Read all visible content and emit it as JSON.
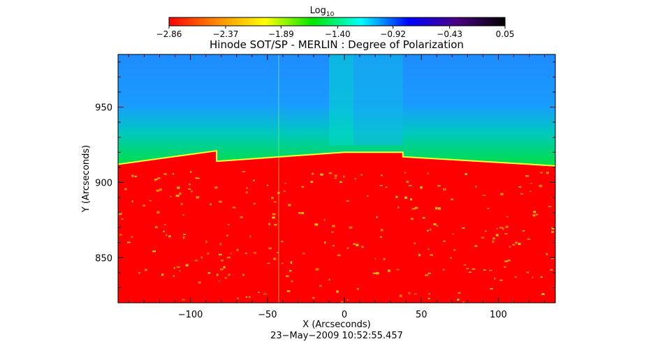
{
  "chart_data": {
    "type": "heatmap",
    "title": "Hinode SOT/SP - MERLIN : Degree of Polarization",
    "xlabel": "X (Arcseconds)",
    "ylabel": "Y (Arcseconds)",
    "xlim": [
      -147,
      137
    ],
    "ylim": [
      820,
      985
    ],
    "x_ticks": [
      -100,
      -50,
      0,
      50,
      100
    ],
    "x_tick_labels": [
      "−100",
      "−50",
      "0",
      "50",
      "100"
    ],
    "y_ticks": [
      850,
      900,
      950
    ],
    "y_tick_labels": [
      "850",
      "900",
      "950"
    ],
    "colorbar": {
      "label": "Log",
      "label_subscript": "10",
      "min": -2.86,
      "max": 0.05,
      "ticks": [
        -2.86,
        -2.37,
        -1.89,
        -1.4,
        -0.92,
        -0.43,
        0.05
      ],
      "tick_labels": [
        "−2.86",
        "−2.37",
        "−1.89",
        "−1.40",
        "−0.92",
        "−0.43",
        "0.05"
      ],
      "colors": [
        "#ff0000",
        "#ff8a00",
        "#ffff00",
        "#00e600",
        "#00ffff",
        "#0000ff",
        "#4b0082",
        "#000000"
      ]
    },
    "footer": "23−May−2009 10:52:55.457",
    "limb_arcsec": [
      [
        -147,
        912
      ],
      [
        -83,
        921
      ],
      [
        -83,
        914
      ],
      [
        0,
        920
      ],
      [
        38,
        920
      ],
      [
        38,
        917
      ],
      [
        137,
        911
      ]
    ],
    "slit_segment_x_arcsec": [
      -83,
      -10,
      6,
      38
    ]
  }
}
